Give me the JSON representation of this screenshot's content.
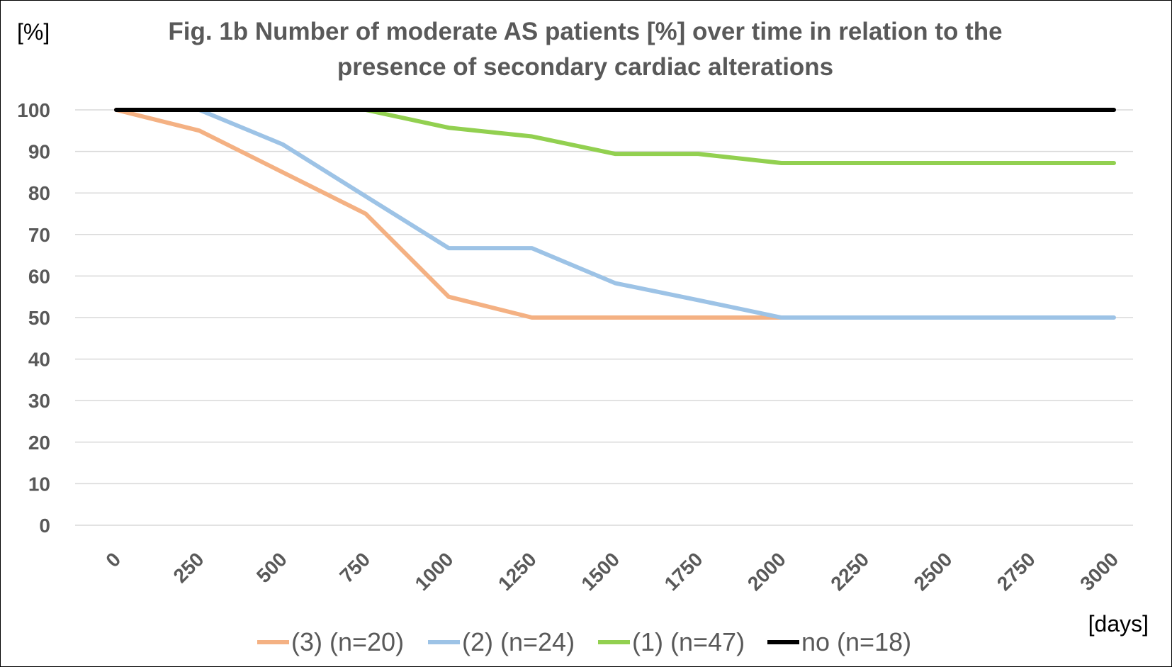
{
  "chart_data": {
    "type": "line",
    "title": "Fig. 1b Number of moderate AS patients [%] over time in relation to the presence of secondary cardiac alterations",
    "title_lines": [
      "Fig. 1b Number of moderate AS patients [%] over time in relation to the",
      "presence of secondary cardiac alterations"
    ],
    "ylabel": "[%]",
    "xlabel": "[days]",
    "x": [
      0,
      250,
      500,
      750,
      1000,
      1250,
      1500,
      1750,
      2000,
      2250,
      2500,
      2750,
      3000
    ],
    "xlim": [
      0,
      3000
    ],
    "ylim": [
      0,
      100
    ],
    "yticks": [
      0,
      10,
      20,
      30,
      40,
      50,
      60,
      70,
      80,
      90,
      100
    ],
    "grid": true,
    "legend_position": "bottom",
    "series": [
      {
        "name": "(3) (n=20)",
        "color": "#F4B183",
        "values": [
          100,
          95,
          85,
          75,
          55,
          50,
          50,
          50,
          50,
          null,
          null,
          null,
          null
        ]
      },
      {
        "name": "(2) (n=24)",
        "color": "#9DC3E6",
        "values": [
          null,
          100,
          91.7,
          79.2,
          66.7,
          66.7,
          58.3,
          54.2,
          50,
          50,
          50,
          50,
          50
        ]
      },
      {
        "name": "(1) (n=47)",
        "color": "#92D050",
        "values": [
          null,
          null,
          null,
          100,
          95.7,
          93.6,
          89.4,
          89.4,
          87.2,
          87.2,
          87.2,
          87.2,
          87.2
        ]
      },
      {
        "name": "no (n=18)",
        "color": "#000000",
        "values": [
          100,
          100,
          100,
          100,
          100,
          100,
          100,
          100,
          100,
          100,
          100,
          100,
          100
        ]
      }
    ]
  }
}
